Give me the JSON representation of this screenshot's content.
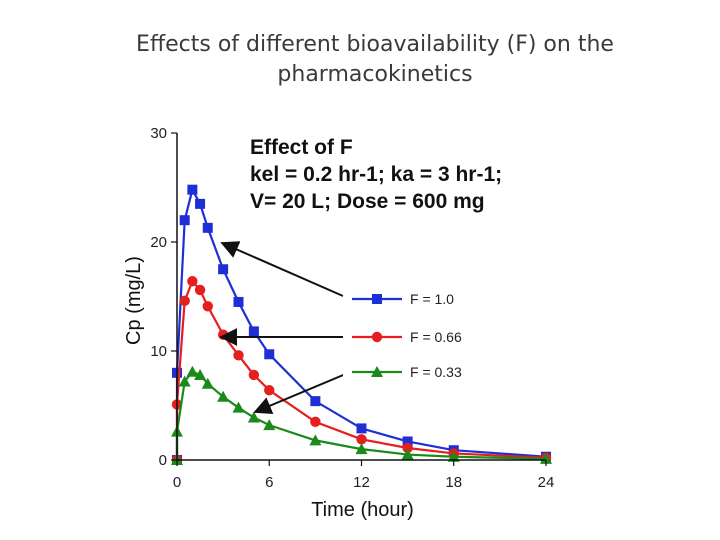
{
  "slide": {
    "title_line1": "Effects of different bioavailability (F) on the",
    "title_line2": "pharmacokinetics"
  },
  "chart_data": {
    "type": "line",
    "annotation": [
      "Effect of F",
      "kel = 0.2 hr-1; ka = 3 hr-1;",
      "V= 20 L; Dose = 600 mg"
    ],
    "xlabel": "Time (hour)",
    "ylabel": "Cp (mg/L)",
    "xlim": [
      0,
      24
    ],
    "ylim": [
      0,
      30
    ],
    "xticks": [
      "0",
      "6",
      "12",
      "18",
      "24"
    ],
    "yticks": [
      "0",
      "10",
      "20",
      "30"
    ],
    "grid": false,
    "legend_position": "right",
    "series": [
      {
        "name": "F = 1.0",
        "color": "#1f2fd6",
        "marker": "square",
        "x": [
          0,
          0,
          0.5,
          1,
          1.5,
          2,
          3,
          4,
          5,
          6,
          9,
          12,
          15,
          18,
          24
        ],
        "y": [
          0,
          8,
          22,
          24.8,
          23.5,
          21.3,
          17.5,
          14.5,
          11.8,
          9.7,
          5.4,
          2.9,
          1.7,
          0.9,
          0.3
        ]
      },
      {
        "name": "F = 0.66",
        "color": "#e51e1e",
        "marker": "circle",
        "x": [
          0,
          0,
          0.5,
          1,
          1.5,
          2,
          3,
          4,
          5,
          6,
          9,
          12,
          15,
          18,
          24
        ],
        "y": [
          0,
          5.1,
          14.6,
          16.4,
          15.6,
          14.1,
          11.5,
          9.6,
          7.8,
          6.4,
          3.5,
          1.9,
          1.1,
          0.6,
          0.2
        ]
      },
      {
        "name": "F = 0.33",
        "color": "#1a8a1a",
        "marker": "triangle",
        "x": [
          0,
          0,
          0.5,
          1,
          1.5,
          2,
          3,
          4,
          5,
          6,
          9,
          12,
          15,
          18,
          24
        ],
        "y": [
          0,
          2.6,
          7.2,
          8.1,
          7.8,
          7.0,
          5.8,
          4.8,
          3.9,
          3.2,
          1.8,
          1.0,
          0.5,
          0.3,
          0.1
        ]
      }
    ]
  }
}
